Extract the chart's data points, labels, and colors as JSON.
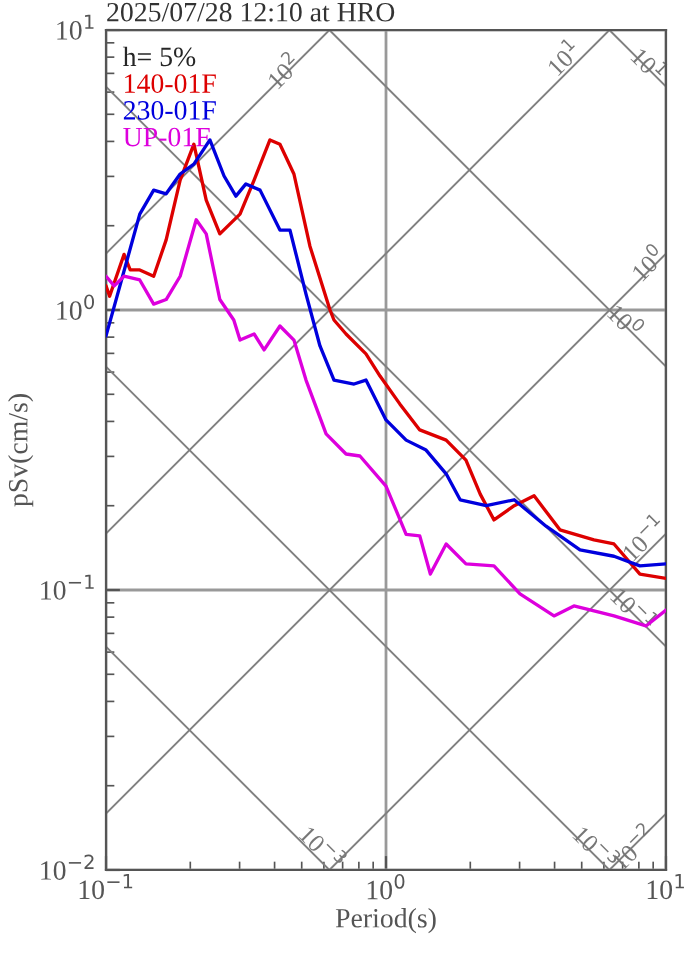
{
  "chart_data": {
    "type": "line",
    "title": "2025/07/28 12:10 at HRO",
    "xlabel": "Period(s)",
    "ylabel": "pSv(cm/s)",
    "legend_title": "h= 5%",
    "legend": "top left",
    "log": "xy",
    "grid": true,
    "marker": "none",
    "line_style": "solid",
    "xlim": [
      0.1,
      10
    ],
    "ylim": [
      0.01,
      10
    ],
    "xticks": [
      {
        "value": 0.1,
        "label": "10$^{−1}$"
      },
      {
        "value": 1,
        "label": "10$^{0}$"
      },
      {
        "value": 10,
        "label": "10$^{1}$"
      }
    ],
    "yticks": [
      {
        "value": 0.01,
        "label": "10$^{−2}$"
      },
      {
        "value": 0.1,
        "label": "10$^{−1}$"
      },
      {
        "value": 1,
        "label": "10$^{0}$"
      },
      {
        "value": 10,
        "label": "10$^{1}$"
      }
    ],
    "series": [
      {
        "x": [
          0.1,
          0.628
        ],
        "values": [
          0.0628,
          0.01
        ],
        "color": "#808080"
      },
      {
        "x": [
          0.1,
          6.28
        ],
        "values": [
          0.628,
          0.01
        ],
        "color": "#808080"
      },
      {
        "x": [
          0.1,
          10
        ],
        "values": [
          6.28,
          0.0628
        ],
        "color": "#808080"
      },
      {
        "x": [
          0.628,
          10
        ],
        "values": [
          10,
          0.628
        ],
        "color": "#808080"
      },
      {
        "x": [
          6.28,
          10
        ],
        "values": [
          10,
          6.28
        ],
        "color": "#808080"
      },
      {
        "x": [
          0.1,
          0.628
        ],
        "values": [
          1.59,
          10
        ],
        "color": "#808080"
      },
      {
        "x": [
          0.1,
          6.28
        ],
        "values": [
          0.159,
          10
        ],
        "color": "#808080"
      },
      {
        "x": [
          0.1,
          10
        ],
        "values": [
          0.0159,
          1.59
        ],
        "color": "#808080"
      },
      {
        "x": [
          0.628,
          10
        ],
        "values": [
          0.01,
          0.159
        ],
        "color": "#808080"
      },
      {
        "x": [
          6.28,
          10
        ],
        "values": [
          0.01,
          0.0159
        ],
        "color": "#808080"
      },
      {
        "name": "140-01F",
        "color": "#dd0000",
        "x": [
          0.1,
          0.103,
          0.116,
          0.122,
          0.132,
          0.148,
          0.164,
          0.184,
          0.206,
          0.228,
          0.255,
          0.301,
          0.338,
          0.385,
          0.418,
          0.469,
          0.535,
          0.631,
          0.652,
          0.72,
          0.848,
          0.952,
          1.12,
          1.32,
          1.64,
          1.93,
          2.17,
          2.43,
          2.87,
          3.38,
          4.18,
          5.53,
          6.52,
          8.07,
          10
        ],
        "values": [
          1.22,
          1.12,
          1.58,
          1.39,
          1.39,
          1.32,
          1.78,
          2.91,
          3.91,
          2.47,
          1.87,
          2.2,
          2.91,
          4.05,
          3.91,
          3.06,
          1.69,
          1.0,
          0.921,
          0.821,
          0.697,
          0.581,
          0.462,
          0.373,
          0.343,
          0.291,
          0.22,
          0.178,
          0.2,
          0.217,
          0.164,
          0.151,
          0.146,
          0.114,
          0.11
        ]
      },
      {
        "name": "230-01F",
        "color": "#0000dd",
        "x": [
          0.1,
          0.107,
          0.132,
          0.148,
          0.164,
          0.184,
          0.206,
          0.235,
          0.264,
          0.291,
          0.316,
          0.355,
          0.418,
          0.454,
          0.518,
          0.581,
          0.652,
          0.769,
          0.848,
          1.0,
          1.18,
          1.39,
          1.64,
          1.84,
          2.28,
          2.87,
          3.73,
          4.93,
          6.52,
          8.07,
          10
        ],
        "values": [
          0.808,
          1.03,
          2.2,
          2.68,
          2.6,
          3.06,
          3.32,
          4.05,
          3.01,
          2.55,
          2.82,
          2.68,
          1.93,
          1.93,
          1.14,
          0.744,
          0.562,
          0.544,
          0.562,
          0.405,
          0.343,
          0.316,
          0.26,
          0.21,
          0.2,
          0.21,
          0.169,
          0.139,
          0.132,
          0.122,
          0.124
        ]
      },
      {
        "name": "UP-01F",
        "color": "#dd00dd",
        "x": [
          0.1,
          0.107,
          0.116,
          0.132,
          0.148,
          0.164,
          0.184,
          0.21,
          0.228,
          0.255,
          0.286,
          0.301,
          0.338,
          0.367,
          0.418,
          0.469,
          0.518,
          0.611,
          0.72,
          0.807,
          1.0,
          1.18,
          1.32,
          1.44,
          1.64,
          1.93,
          2.43,
          3.01,
          3.98,
          4.69,
          6.52,
          8.48,
          10
        ],
        "values": [
          1.32,
          1.22,
          1.32,
          1.28,
          1.05,
          1.09,
          1.32,
          2.1,
          1.87,
          1.09,
          0.921,
          0.781,
          0.821,
          0.72,
          0.877,
          0.781,
          0.562,
          0.361,
          0.306,
          0.301,
          0.235,
          0.158,
          0.156,
          0.114,
          0.146,
          0.124,
          0.122,
          0.0968,
          0.0808,
          0.0877,
          0.0808,
          0.0744,
          0.0848
        ]
      }
    ],
    "annotations": [
      {
        "text": "10$^{2}$",
        "x": 0.44,
        "y": 7.0
      },
      {
        "text": "10$^{1}$",
        "x": 4.4,
        "y": 7.8
      },
      {
        "text": "10$^{1}$",
        "x": 8.5,
        "y": 7.39
      },
      {
        "text": "10$^{0}$",
        "x": 8.8,
        "y": 1.44
      },
      {
        "text": "10$^{0}$",
        "x": 7.0,
        "y": 0.897
      },
      {
        "text": "10$^{−1}$",
        "x": 8.5,
        "y": 0.15
      },
      {
        "text": "10$^{−1}$",
        "x": 7.5,
        "y": 0.0837
      },
      {
        "text": "10$^{−3}$",
        "x": 0.58,
        "y": 0.0118
      },
      {
        "text": "10$^{−3}$",
        "x": 5.5,
        "y": 0.0118
      },
      {
        "text": "10$^{−2}$",
        "x": 7.8,
        "y": 0.0118
      }
    ]
  }
}
